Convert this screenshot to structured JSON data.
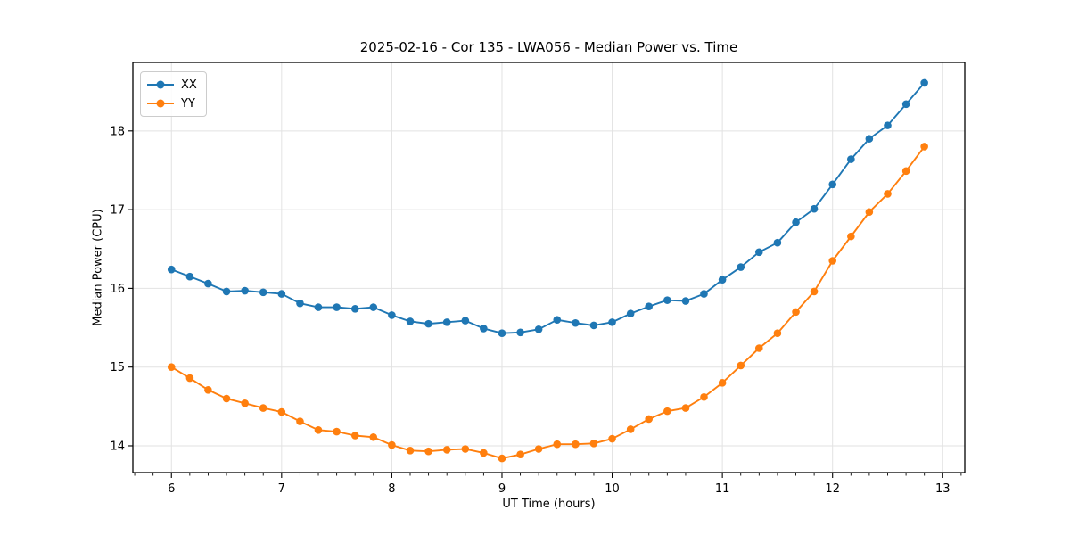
{
  "chart_data": {
    "type": "line",
    "title": "2025-02-16 - Cor 135 - LWA056 - Median Power vs. Time",
    "xlabel": "UT Time (hours)",
    "ylabel": "Median Power (CPU)",
    "xlim": [
      5.65,
      13.2
    ],
    "ylim": [
      13.66,
      18.87
    ],
    "xticks": [
      6,
      7,
      8,
      9,
      10,
      11,
      12,
      13
    ],
    "yticks": [
      14,
      15,
      16,
      17,
      18
    ],
    "x_minor_step_hours": 0.1667,
    "grid": true,
    "legend_position": "upper-left",
    "x": [
      6.0,
      6.167,
      6.333,
      6.5,
      6.667,
      6.833,
      7.0,
      7.167,
      7.333,
      7.5,
      7.667,
      7.833,
      8.0,
      8.167,
      8.333,
      8.5,
      8.667,
      8.833,
      9.0,
      9.167,
      9.333,
      9.5,
      9.667,
      9.833,
      10.0,
      10.167,
      10.333,
      10.5,
      10.667,
      10.833,
      11.0,
      11.167,
      11.333,
      11.5,
      11.667,
      11.833,
      12.0,
      12.167,
      12.333,
      12.5,
      12.667,
      12.833
    ],
    "series": [
      {
        "name": "XX",
        "color": "#1f77b4",
        "values": [
          16.24,
          16.15,
          16.06,
          15.96,
          15.97,
          15.95,
          15.93,
          15.81,
          15.76,
          15.76,
          15.74,
          15.76,
          15.66,
          15.58,
          15.55,
          15.57,
          15.59,
          15.49,
          15.43,
          15.44,
          15.48,
          15.6,
          15.56,
          15.53,
          15.57,
          15.68,
          15.77,
          15.85,
          15.84,
          15.93,
          16.11,
          16.27,
          16.46,
          16.58,
          16.84,
          17.01,
          17.32,
          17.64,
          17.9,
          18.07,
          18.34,
          18.61
        ]
      },
      {
        "name": "YY",
        "color": "#ff7f0e",
        "values": [
          15.0,
          14.86,
          14.71,
          14.6,
          14.54,
          14.48,
          14.43,
          14.31,
          14.2,
          14.18,
          14.13,
          14.11,
          14.01,
          13.94,
          13.93,
          13.95,
          13.96,
          13.91,
          13.84,
          13.89,
          13.96,
          14.02,
          14.02,
          14.03,
          14.09,
          14.21,
          14.34,
          14.44,
          14.48,
          14.62,
          14.8,
          15.02,
          15.24,
          15.43,
          15.7,
          15.96,
          16.35,
          16.66,
          16.97,
          17.2,
          17.49,
          17.8
        ]
      }
    ]
  },
  "colors": {
    "background": "#ffffff",
    "grid": "#e2e2e2",
    "spine": "#000000",
    "tick": "#000000",
    "series_xx": "#1f77b4",
    "series_yy": "#ff7f0e"
  }
}
